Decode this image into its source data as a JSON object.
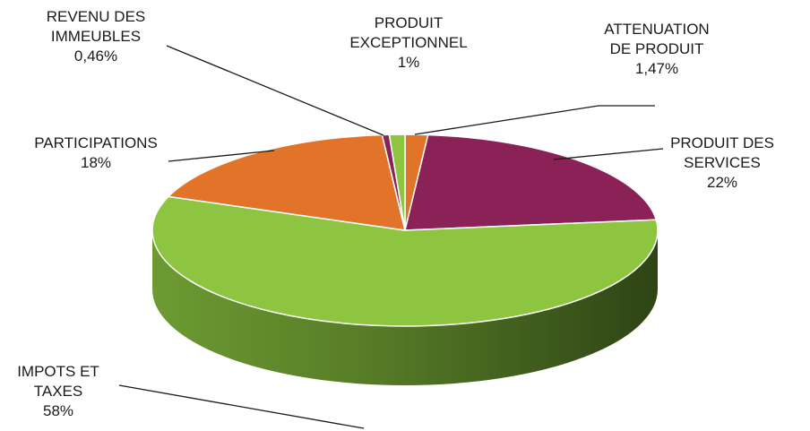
{
  "chart_data": {
    "type": "pie",
    "variant": "3d",
    "title": "",
    "slices": [
      {
        "label_lines": [
          "ATTENUATION",
          "DE PRODUIT"
        ],
        "value_label": "1,47%",
        "value": 1.47,
        "color": "#E2742A"
      },
      {
        "label_lines": [
          "PRODUIT DES",
          "SERVICES"
        ],
        "value_label": "22%",
        "value": 22,
        "color": "#8A2157"
      },
      {
        "label_lines": [
          "IMPOTS ET",
          "TAXES"
        ],
        "value_label": "58%",
        "value": 58,
        "color": "#8DC541"
      },
      {
        "label_lines": [
          "PARTICIPATIONS"
        ],
        "value_label": "18%",
        "value": 18,
        "color": "#E2742A"
      },
      {
        "label_lines": [
          "REVENU DES",
          "IMMEUBLES"
        ],
        "value_label": "0,46%",
        "value": 0.46,
        "color": "#8A2157"
      },
      {
        "label_lines": [
          "PRODUIT",
          "EXCEPTIONNEL"
        ],
        "value_label": "1%",
        "value": 1,
        "color": "#8DC541"
      }
    ]
  }
}
